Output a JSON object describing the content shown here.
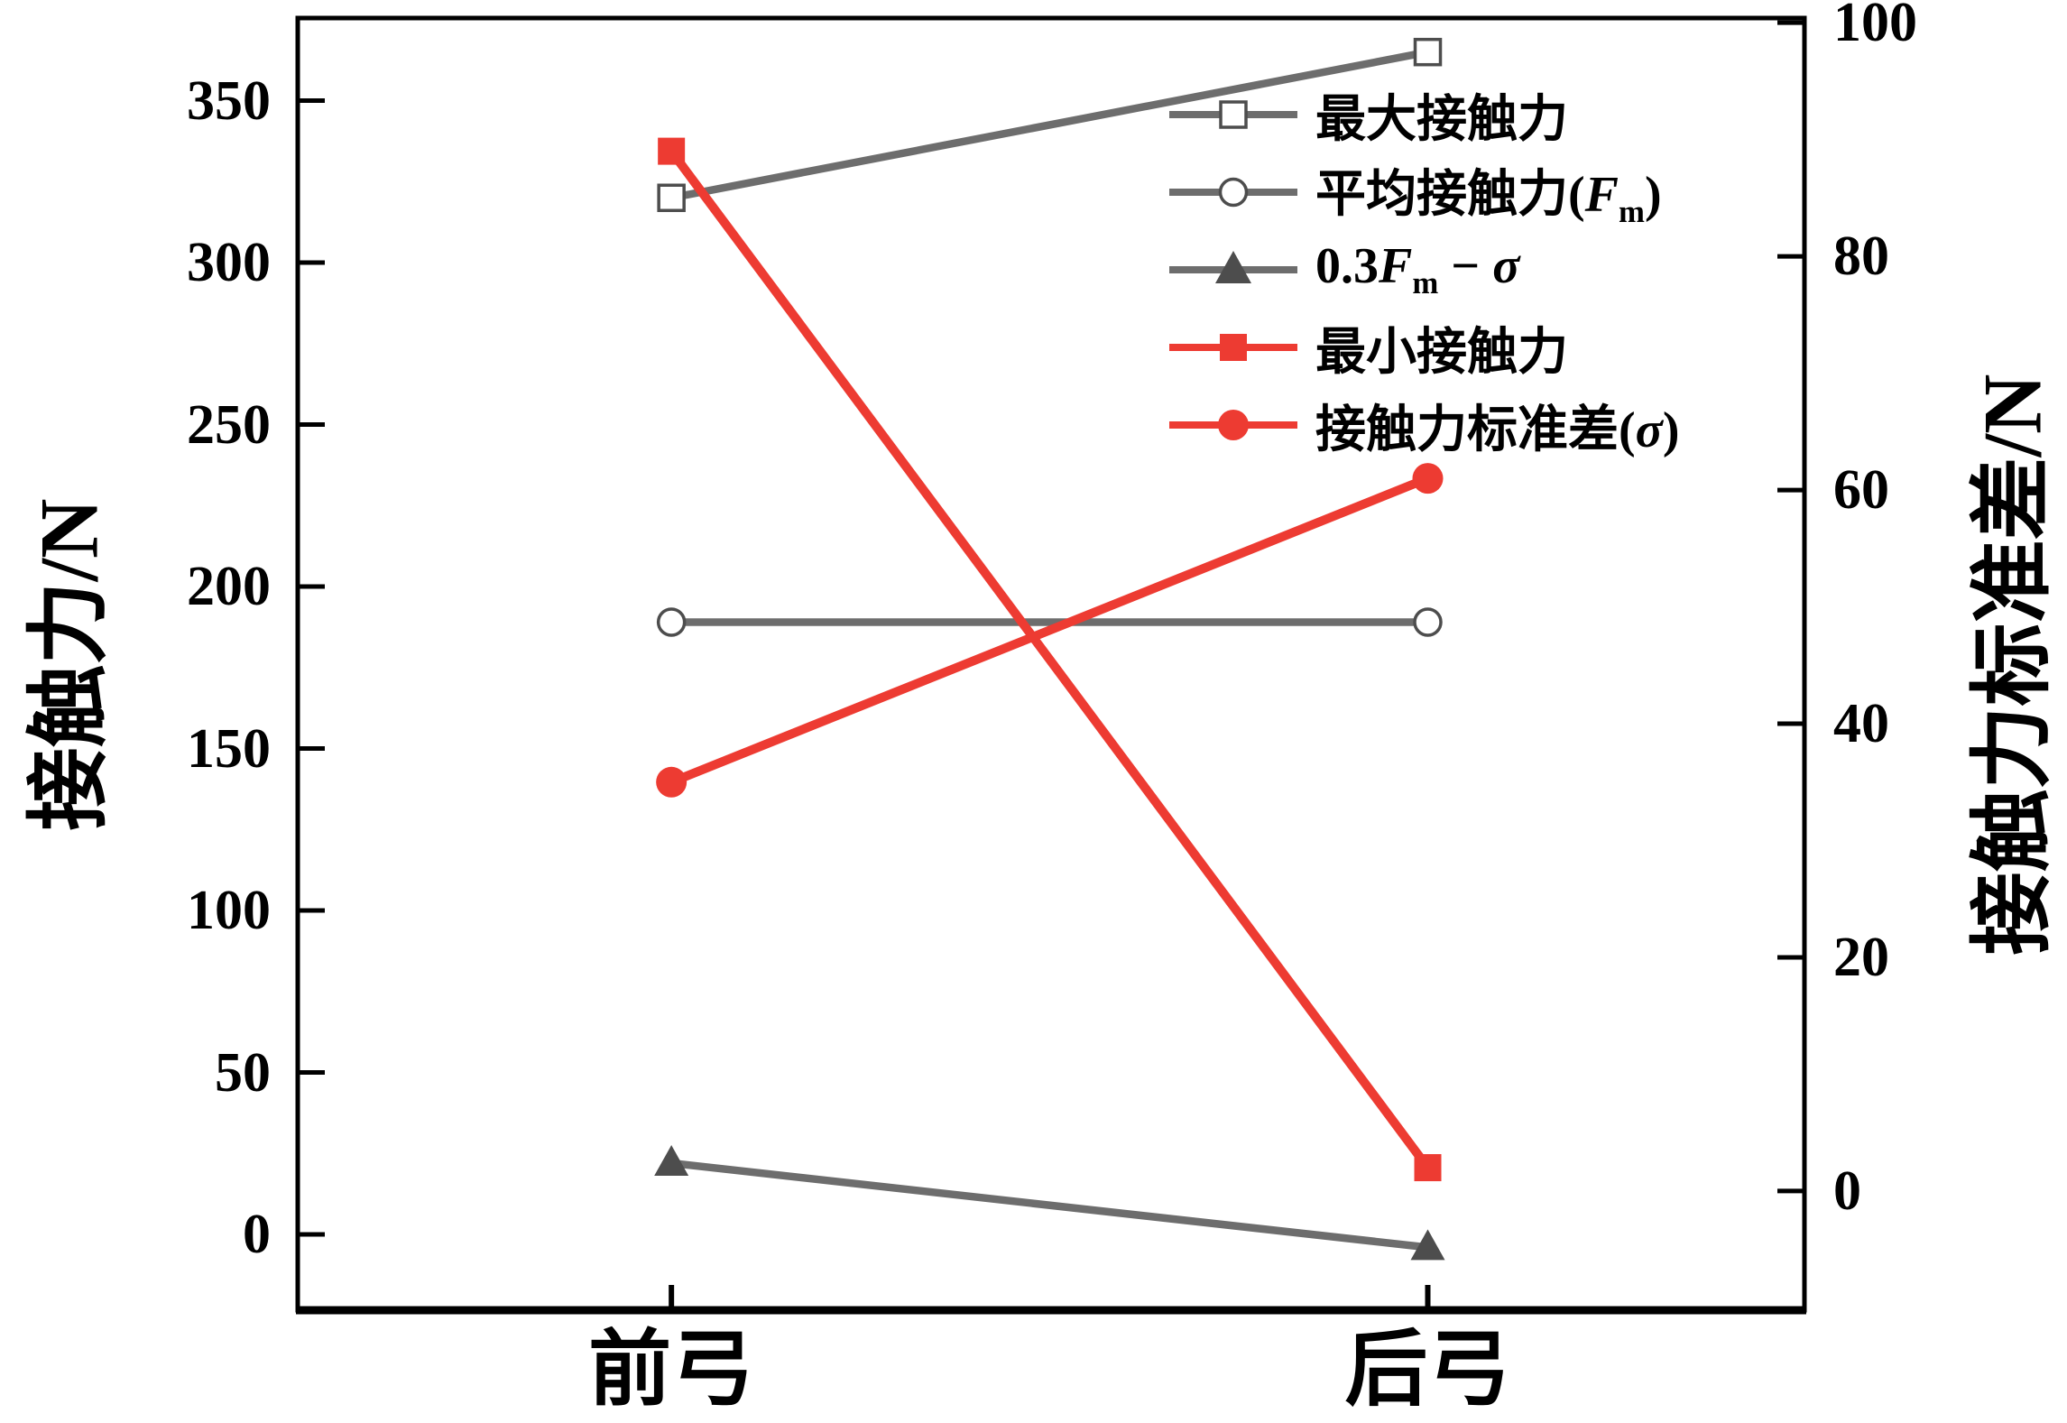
{
  "figure": {
    "background": "#ffffff",
    "colors": {
      "gray_series": "#6d6d6d",
      "red_series": "#ed3b32",
      "marker_dark": "#4d4d4d",
      "axis": "#000000"
    }
  },
  "chart_data": {
    "type": "line",
    "categories": [
      "前弓",
      "后弓"
    ],
    "x_positions": [
      0.248,
      0.75
    ],
    "grid": false,
    "legend_position": "upper-right-inside",
    "left_axis": {
      "label": "接触力/N",
      "ticks": [
        0,
        50,
        100,
        150,
        200,
        250,
        300,
        350
      ],
      "lim": [
        -23.4,
        375.5
      ]
    },
    "right_axis": {
      "label": "接触力标准差/N",
      "ticks": [
        0,
        20,
        40,
        60,
        80,
        100
      ],
      "lim": [
        -10.2,
        100.4
      ]
    },
    "series": [
      {
        "name": "最大接触力",
        "axis": "left",
        "color": "#6d6d6d",
        "marker": "square-open",
        "values": [
          320,
          365
        ],
        "label_parts": [
          {
            "t": "最大接触力",
            "s": "n"
          }
        ]
      },
      {
        "name": "平均接触力(Fm)",
        "axis": "left",
        "color": "#6d6d6d",
        "marker": "circle-open",
        "values": [
          189,
          189
        ],
        "label_parts": [
          {
            "t": "平均接触力(",
            "s": "n"
          },
          {
            "t": "F",
            "s": "i"
          },
          {
            "t": "m",
            "s": "sub"
          },
          {
            "t": ")",
            "s": "n"
          }
        ]
      },
      {
        "name": "0.3Fm − σ",
        "axis": "left",
        "color": "#6d6d6d",
        "marker": "triangle-filled",
        "values": [
          22,
          -4
        ],
        "label_parts": [
          {
            "t": "0.3",
            "s": "n"
          },
          {
            "t": "F",
            "s": "i"
          },
          {
            "t": "m",
            "s": "sub"
          },
          {
            "t": " − ",
            "s": "n"
          },
          {
            "t": "σ",
            "s": "i"
          }
        ]
      },
      {
        "name": "最小接触力",
        "axis": "right",
        "color": "#ed3b32",
        "marker": "square-filled",
        "values": [
          89,
          2
        ],
        "label_parts": [
          {
            "t": "最小接触力",
            "s": "n"
          }
        ]
      },
      {
        "name": "接触力标准差(σ)",
        "axis": "right",
        "color": "#ed3b32",
        "marker": "circle-filled",
        "values": [
          35,
          61
        ],
        "label_parts": [
          {
            "t": "接触力标准差(",
            "s": "n"
          },
          {
            "t": "σ",
            "s": "i"
          },
          {
            "t": ")",
            "s": "n"
          }
        ]
      }
    ]
  }
}
